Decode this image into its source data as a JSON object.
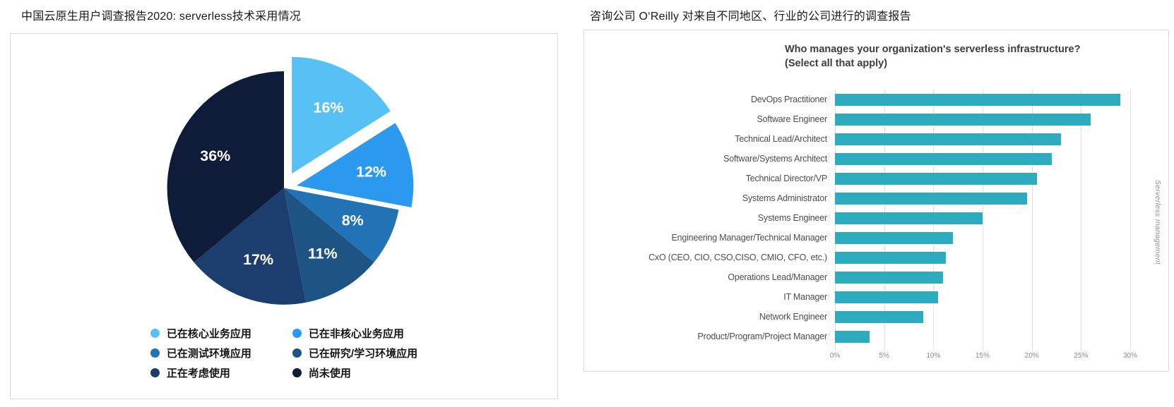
{
  "page": {
    "left_panel_title": "中国云原生用户调查报告2020: serverless技术采用情况",
    "right_panel_title": "咨询公司 O‘Reilly  对来自不同地区、行业的公司进行的调查报告"
  },
  "chart_data": [
    {
      "type": "pie",
      "title": "中国云原生用户调查报告2020: serverless技术采用情况",
      "direction": "clockwise",
      "start_angle_deg": 0,
      "value_label_format": "{value}%",
      "legend_position": "bottom",
      "legend_columns": 2,
      "slices": [
        {
          "label": "已在核心业务应用",
          "value": 16,
          "color": "#57C0F4",
          "explode": 14
        },
        {
          "label": "已在非核心业务应用",
          "value": 12,
          "color": "#2B9AEE",
          "explode": 11
        },
        {
          "label": "已在测试环境应用",
          "value": 8,
          "color": "#2273B5",
          "explode": 0
        },
        {
          "label": "已在研究/学习环境应用",
          "value": 11,
          "color": "#1D5484",
          "explode": 0
        },
        {
          "label": "正在考虑使用",
          "value": 17,
          "color": "#1C3E6E",
          "explode": 0
        },
        {
          "label": "尚未使用",
          "value": 36,
          "color": "#0E1C39",
          "explode": 0
        }
      ]
    },
    {
      "type": "bar",
      "orientation": "horizontal",
      "title": "Who manages your organization's serverless infrastructure?",
      "subtitle": "(Select all that apply)",
      "side_label": "Serverless management",
      "bar_color": "#2EACBF",
      "grid": true,
      "xlim": [
        0,
        30
      ],
      "ticks": [
        "0%",
        "5%",
        "10%",
        "15%",
        "20%",
        "25%",
        "30%"
      ],
      "categories": [
        "DevOps Practitioner",
        "Software Engineer",
        "Technical Lead/Architect",
        "Software/Systems Architect",
        "Technical Director/VP",
        "Systems Administrator",
        "Systems Engineer",
        "Engineering Manager/Technical Manager",
        "CxO (CEO, CIO, CSO,CISO, CMIO, CFO, etc.)",
        "Operations Lead/Manager",
        "IT Manager",
        "Network Engineer",
        "Product/Program/Project Manager"
      ],
      "values": [
        29,
        26,
        23,
        22,
        20.5,
        19.5,
        15,
        12,
        11.3,
        11,
        10.5,
        9,
        3.5
      ]
    }
  ]
}
